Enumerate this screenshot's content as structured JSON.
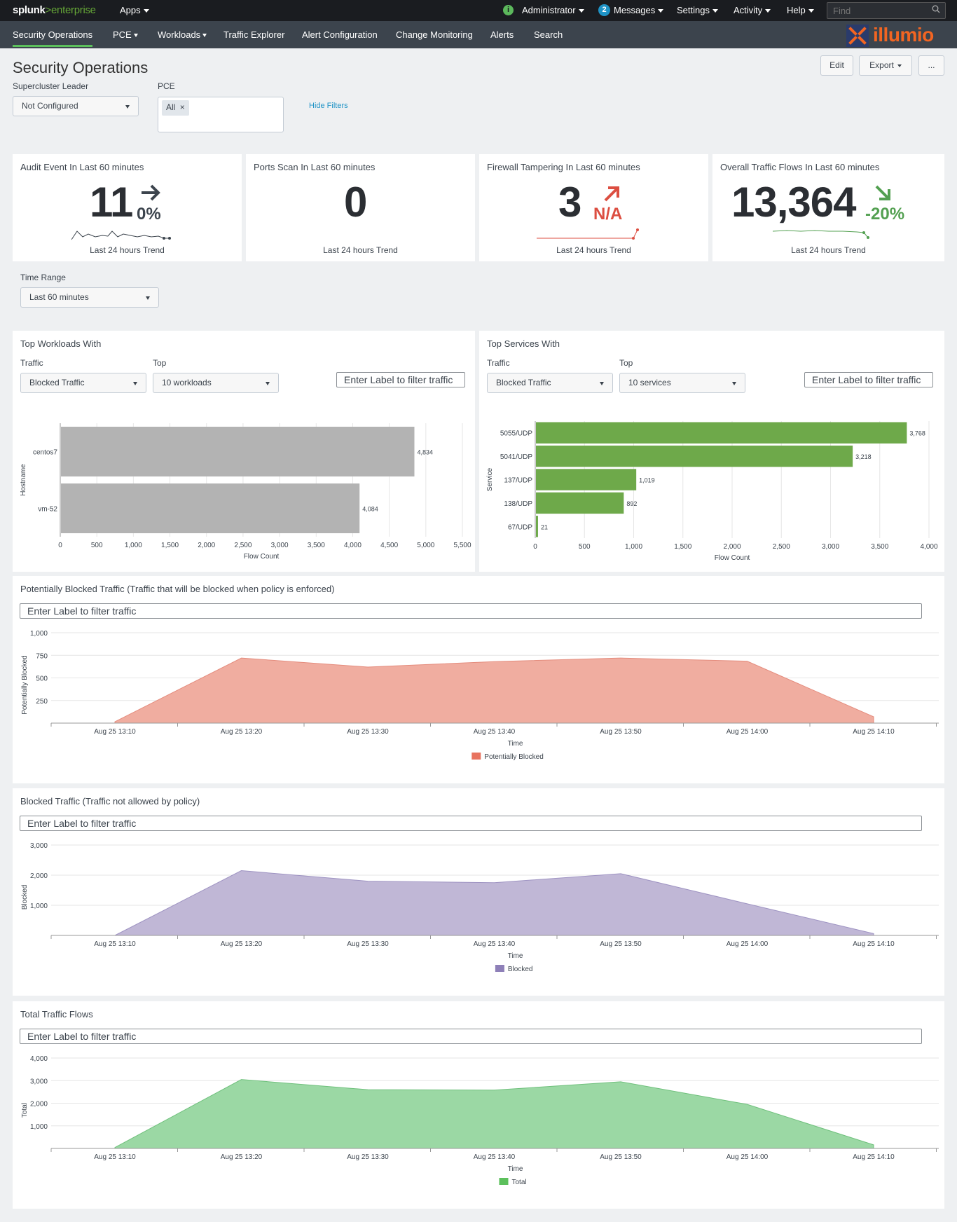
{
  "topbar": {
    "logo_splunk": "splunk",
    "logo_gt": ">",
    "logo_enterprise": "enterprise",
    "apps": "Apps",
    "status_icon": "i",
    "user": "Administrator",
    "messages_count": "2",
    "messages": "Messages",
    "settings": "Settings",
    "activity": "Activity",
    "help": "Help",
    "find_placeholder": "Find"
  },
  "nav": {
    "items": [
      "Security Operations",
      "PCE",
      "Workloads",
      "Traffic Explorer",
      "Alert Configuration",
      "Change Monitoring",
      "Alerts",
      "Search"
    ],
    "brand": "illumio"
  },
  "header": {
    "title": "Security Operations",
    "edit": "Edit",
    "export": "Export",
    "more": "..."
  },
  "filters": {
    "supercluster_label": "Supercluster Leader",
    "supercluster_value": "Not Configured",
    "pce_label": "PCE",
    "pce_chip": "All",
    "pce_chip_close": "×",
    "hide_filters": "Hide Filters",
    "time_range_label": "Time Range",
    "time_range_value": "Last 60 minutes"
  },
  "kpis": [
    {
      "title": "Audit Event In Last 60 minutes",
      "value": "11",
      "delta": "0%",
      "trend_label": "Last 24 hours Trend",
      "direction": "flat",
      "color": "#3c444d"
    },
    {
      "title": "Ports Scan In Last 60 minutes",
      "value": "0",
      "delta": "",
      "trend_label": "Last 24 hours Trend",
      "direction": "none",
      "color": "#3c444d"
    },
    {
      "title": "Firewall Tampering In Last 60 minutes",
      "value": "3",
      "delta": "N/A",
      "trend_label": "Last 24 hours Trend",
      "direction": "up",
      "color": "#dc4e41"
    },
    {
      "title": "Overall Traffic Flows In Last 60 minutes",
      "value": "13,364",
      "delta": "-20%",
      "trend_label": "Last 24 hours Trend",
      "direction": "down",
      "color": "#53a051"
    }
  ],
  "workloads": {
    "title": "Top Workloads With",
    "traffic_label": "Traffic",
    "traffic_value": "Blocked Traffic",
    "top_label": "Top",
    "top_value": "10 workloads",
    "filter_placeholder": "Enter Label to filter traffic"
  },
  "services": {
    "title": "Top Services With",
    "traffic_label": "Traffic",
    "traffic_value": "Blocked Traffic",
    "top_label": "Top",
    "top_value": "10 services",
    "filter_placeholder": "Enter Label to filter traffic"
  },
  "potential": {
    "title": "Potentially Blocked Traffic (Traffic that will be blocked when policy is enforced)",
    "filter_placeholder": "Enter Label to filter traffic"
  },
  "blocked": {
    "title": "Blocked Traffic (Traffic not allowed by policy)",
    "filter_placeholder": "Enter Label to filter traffic"
  },
  "total": {
    "title": "Total Traffic Flows",
    "filter_placeholder": "Enter Label to filter traffic"
  },
  "chart_data": [
    {
      "id": "workloads",
      "type": "bar",
      "orientation": "horizontal",
      "categories": [
        "centos7",
        "vm-52"
      ],
      "values": [
        4834,
        4084
      ],
      "value_labels": [
        "4,834",
        "4,084"
      ],
      "xlabel": "Flow Count",
      "ylabel": "Hostname",
      "xlim": [
        0,
        5500
      ],
      "xticks": [
        0,
        500,
        1000,
        1500,
        2000,
        2500,
        3000,
        3500,
        4000,
        4500,
        5000,
        5500
      ],
      "xtick_labels": [
        "0",
        "500",
        "1,000",
        "1,500",
        "2,000",
        "2,500",
        "3,000",
        "3,500",
        "4,000",
        "4,500",
        "5,000",
        "5,500"
      ],
      "color": "#b3b3b3"
    },
    {
      "id": "services",
      "type": "bar",
      "orientation": "horizontal",
      "categories": [
        "5055/UDP",
        "5041/UDP",
        "137/UDP",
        "138/UDP",
        "67/UDP"
      ],
      "values": [
        3768,
        3218,
        1019,
        892,
        21
      ],
      "value_labels": [
        "3,768",
        "3,218",
        "1,019",
        "892",
        "21"
      ],
      "xlabel": "Flow Count",
      "ylabel": "Service",
      "xlim": [
        0,
        4000
      ],
      "xticks": [
        0,
        500,
        1000,
        1500,
        2000,
        2500,
        3000,
        3500,
        4000
      ],
      "xtick_labels": [
        "0",
        "500",
        "1,000",
        "1,500",
        "2,000",
        "2,500",
        "3,000",
        "3,500",
        "4,000"
      ],
      "color": "#6ea94a"
    },
    {
      "id": "potential",
      "type": "area",
      "x": [
        "Aug 25 13:10",
        "Aug 25 13:20",
        "Aug 25 13:30",
        "Aug 25 13:40",
        "Aug 25 13:50",
        "Aug 25 14:00",
        "Aug 25 14:10"
      ],
      "series": [
        {
          "name": "Potentially Blocked",
          "values": [
            15,
            720,
            620,
            680,
            720,
            685,
            70
          ]
        }
      ],
      "xlabel": "Time",
      "ylabel": "Potentially Blocked",
      "ylim": [
        0,
        1000
      ],
      "yticks": [
        250,
        500,
        750,
        1000
      ],
      "ytick_labels": [
        "250",
        "500",
        "750",
        "1,000"
      ],
      "fill": "#f0ada0",
      "stroke": "#e48c7d",
      "legend_color": "#e8735f"
    },
    {
      "id": "blocked",
      "type": "area",
      "x": [
        "Aug 25 13:10",
        "Aug 25 13:20",
        "Aug 25 13:30",
        "Aug 25 13:40",
        "Aug 25 13:50",
        "Aug 25 14:00",
        "Aug 25 14:10"
      ],
      "series": [
        {
          "name": "Blocked",
          "values": [
            0,
            2150,
            1800,
            1750,
            2050,
            1050,
            60
          ]
        }
      ],
      "xlabel": "Time",
      "ylabel": "Blocked",
      "ylim": [
        0,
        3000
      ],
      "yticks": [
        1000,
        2000,
        3000
      ],
      "ytick_labels": [
        "1,000",
        "2,000",
        "3,000"
      ],
      "fill": "#c0b7d6",
      "stroke": "#9e93c2",
      "legend_color": "#8e80b8"
    },
    {
      "id": "total",
      "type": "area",
      "x": [
        "Aug 25 13:10",
        "Aug 25 13:20",
        "Aug 25 13:30",
        "Aug 25 13:40",
        "Aug 25 13:50",
        "Aug 25 14:00",
        "Aug 25 14:10"
      ],
      "series": [
        {
          "name": "Total",
          "values": [
            40,
            3050,
            2600,
            2580,
            2950,
            1950,
            160
          ]
        }
      ],
      "xlabel": "Time",
      "ylabel": "Total",
      "ylim": [
        0,
        4000
      ],
      "yticks": [
        1000,
        2000,
        3000,
        4000
      ],
      "ytick_labels": [
        "1,000",
        "2,000",
        "3,000",
        "4,000"
      ],
      "fill": "#9bd8a4",
      "stroke": "#6fc07c",
      "legend_color": "#5cc05c"
    }
  ]
}
